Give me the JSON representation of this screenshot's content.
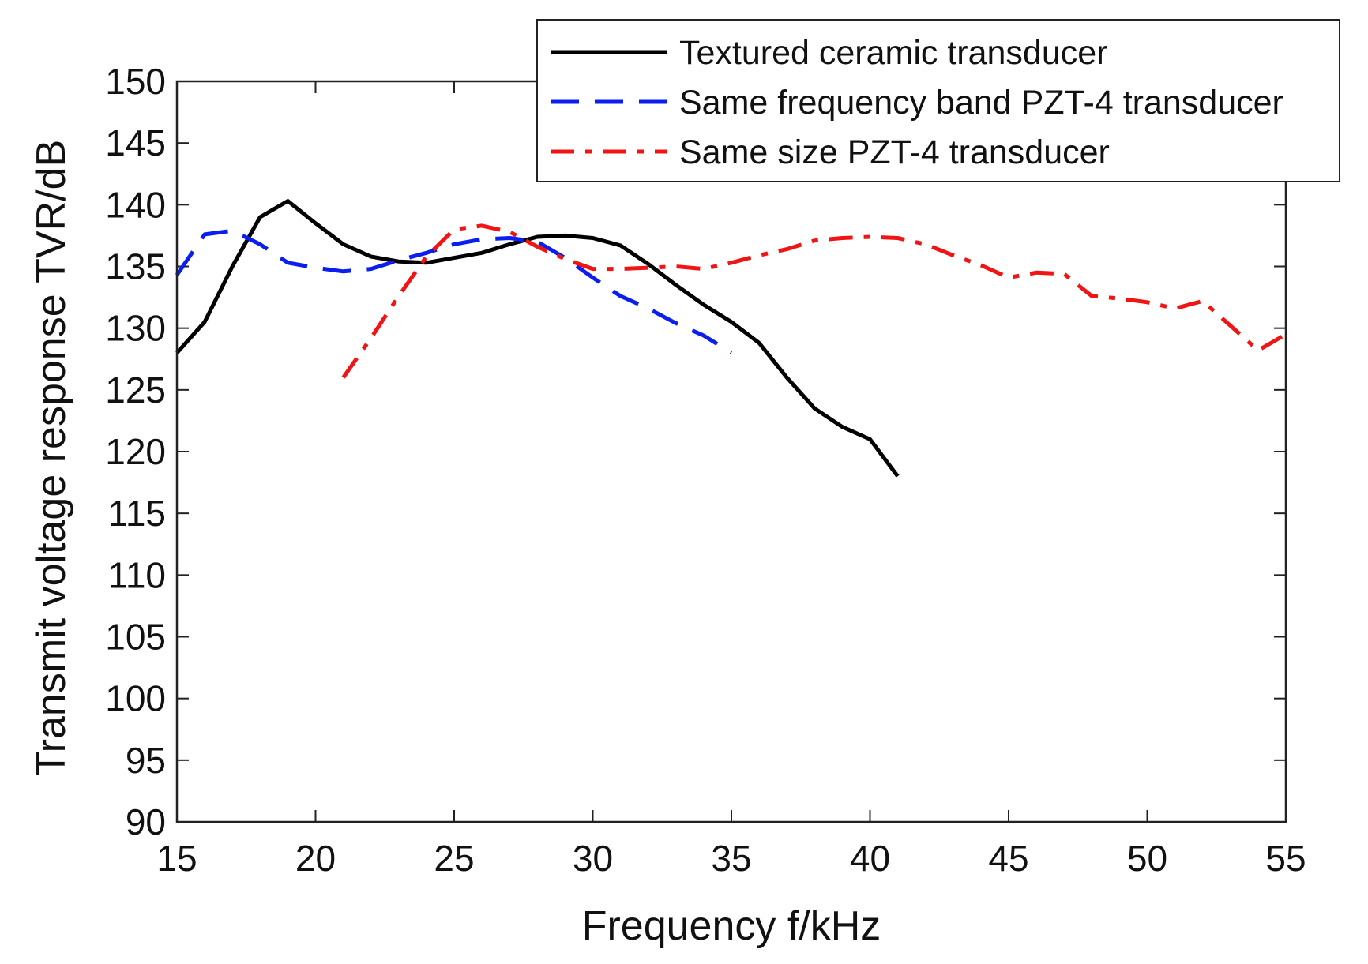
{
  "chart_data": {
    "type": "line",
    "title": "",
    "xlabel": "Frequency f/kHz",
    "ylabel": "Transmit voltage response TVR/dB",
    "xlim": [
      15,
      55
    ],
    "ylim": [
      90,
      150
    ],
    "xticks": [
      15,
      20,
      25,
      30,
      35,
      40,
      45,
      50,
      55
    ],
    "yticks": [
      90,
      95,
      100,
      105,
      110,
      115,
      120,
      125,
      130,
      135,
      140,
      145,
      150
    ],
    "grid": false,
    "legend_position": "top-right",
    "series": [
      {
        "name": "Textured ceramic transducer",
        "color": "#000000",
        "dash": "solid",
        "x": [
          15,
          16,
          17,
          18,
          19,
          20,
          21,
          22,
          23,
          24,
          25,
          26,
          27,
          28,
          29,
          30,
          31,
          32,
          33,
          34,
          35,
          36,
          37,
          38,
          39,
          40,
          41
        ],
        "y": [
          128,
          130.5,
          135,
          139,
          140.3,
          138.5,
          136.8,
          135.8,
          135.4,
          135.3,
          135.7,
          136.1,
          136.8,
          137.4,
          137.5,
          137.3,
          136.7,
          135.2,
          133.5,
          131.9,
          130.5,
          128.8,
          126,
          123.5,
          122,
          121,
          118
        ]
      },
      {
        "name": "Same frequency band PZT-4 transducer",
        "color": "#0b1ef0",
        "dash": "dashed",
        "x": [
          15,
          16,
          17,
          18,
          19,
          20,
          21,
          22,
          23,
          24,
          25,
          26,
          27,
          28,
          29,
          30,
          31,
          32,
          33,
          34,
          35
        ],
        "y": [
          134.3,
          137.6,
          137.9,
          136.8,
          135.3,
          134.9,
          134.6,
          134.8,
          135.5,
          136.1,
          136.8,
          137.2,
          137.3,
          137,
          135.7,
          134.1,
          132.6,
          131.6,
          130.4,
          129.4,
          128
        ]
      },
      {
        "name": "Same size PZT-4 transducer",
        "color": "#f01414",
        "dash": "dashdot",
        "x": [
          21,
          22,
          23,
          24,
          25,
          26,
          27,
          28,
          29,
          30,
          31,
          32,
          33,
          34,
          35,
          36,
          37,
          38,
          39,
          40,
          41,
          42,
          43,
          44,
          45,
          46,
          47,
          48,
          49,
          50,
          51,
          52,
          53,
          54,
          55
        ],
        "y": [
          126,
          129.2,
          132.6,
          135.8,
          138,
          138.3,
          137.8,
          136.6,
          135.6,
          134.8,
          134.8,
          134.9,
          135,
          134.8,
          135.3,
          135.9,
          136.4,
          137.1,
          137.3,
          137.4,
          137.3,
          136.8,
          135.9,
          135.1,
          134.1,
          134.5,
          134.4,
          132.6,
          132.4,
          132.1,
          131.6,
          132.2,
          130.2,
          128.2,
          129.5
        ]
      }
    ]
  }
}
